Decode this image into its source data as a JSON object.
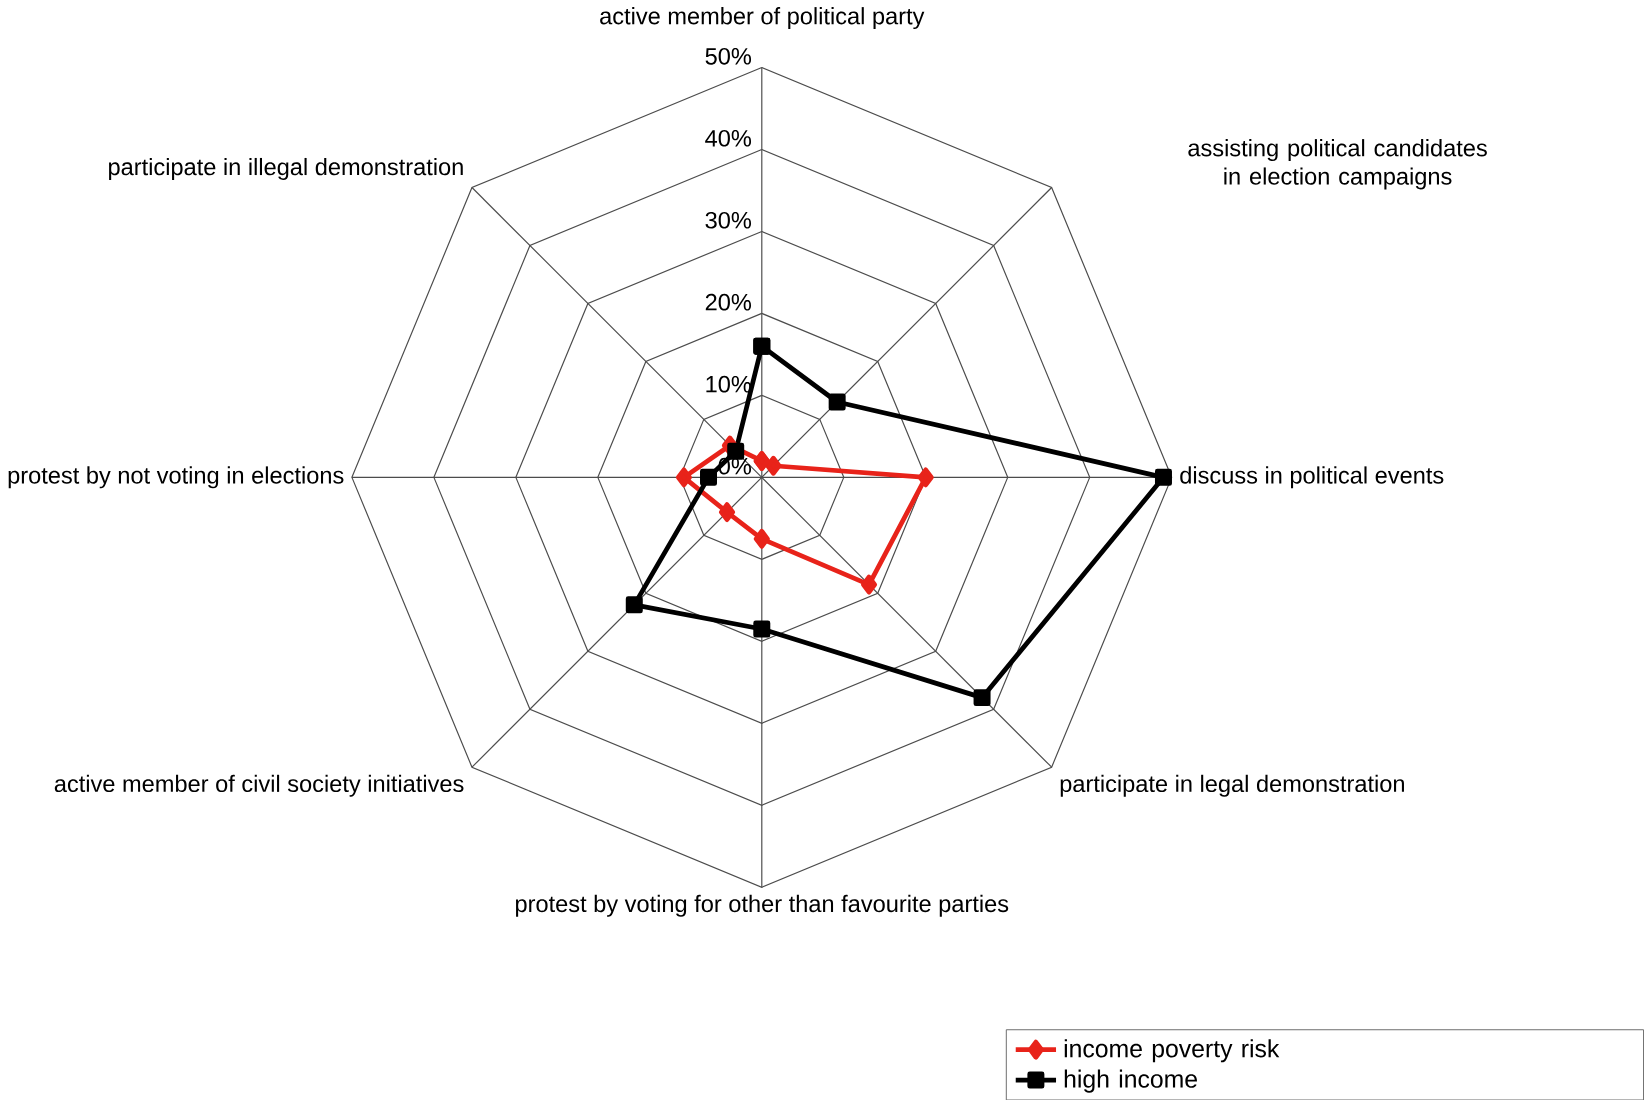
{
  "chart_data": {
    "type": "radar",
    "categories": [
      "active member of political party",
      "assisting political candidates in election campaigns",
      "discuss in political events",
      "participate in legal demonstration",
      "protest by voting for other than favourite parties",
      "active member of civil society initiatives",
      "protest by not voting in elections",
      "participate in illegal demonstration"
    ],
    "series": [
      {
        "name": "income poverty risk",
        "color": "#e8231a",
        "marker": "diamond",
        "values": [
          2,
          2,
          20,
          18.5,
          7.5,
          6,
          9.5,
          5.5
        ]
      },
      {
        "name": "high income",
        "color": "#000000",
        "marker": "square",
        "values": [
          16,
          13,
          49,
          38,
          18.5,
          22,
          6.5,
          4.5
        ]
      }
    ],
    "ylim": [
      0,
      50
    ],
    "yticks": [
      {
        "value": 0,
        "label": "0%"
      },
      {
        "value": 10,
        "label": "10%"
      },
      {
        "value": 20,
        "label": "20%"
      },
      {
        "value": 30,
        "label": "30%"
      },
      {
        "value": 40,
        "label": "40%"
      },
      {
        "value": 50,
        "label": "50%"
      }
    ],
    "grid": true,
    "legend": "bottom right"
  }
}
